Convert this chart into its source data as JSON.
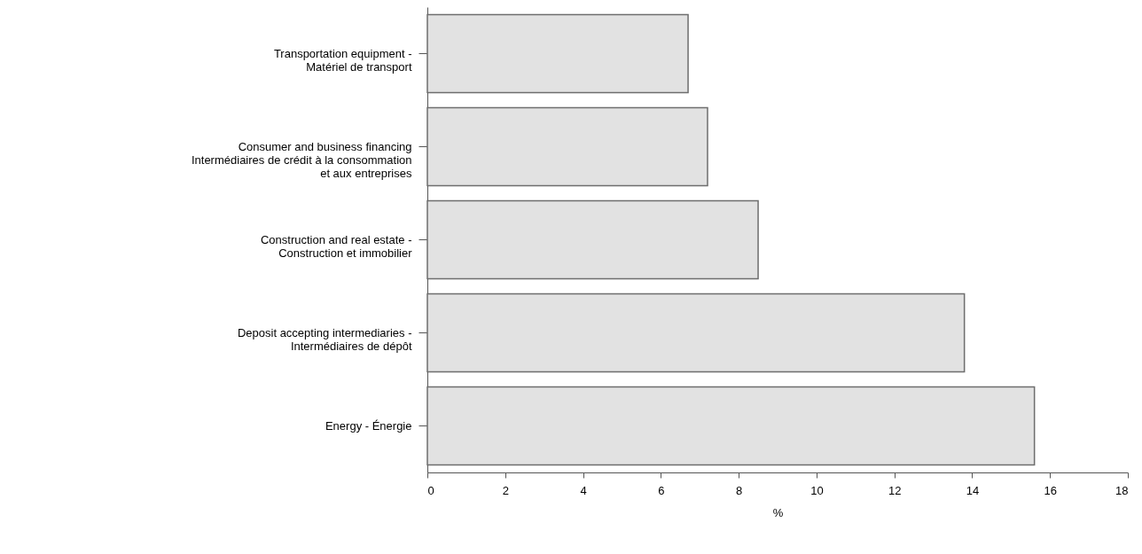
{
  "chart_data": {
    "type": "bar",
    "orientation": "horizontal",
    "xlabel": "%",
    "categories": [
      "Transportation equipment -\nMatériel de transport",
      "Consumer and business financing\nIntermédiaires de crédit à la consommation\net aux entreprises",
      "Construction and real estate -\nConstruction et immobilier",
      "Deposit accepting intermediaries -\nIntermédiaires de dépôt",
      "Energy - Énergie"
    ],
    "values": [
      6.7,
      7.2,
      8.5,
      13.8,
      15.6
    ],
    "color": "#e2e2e2",
    "xlim": [
      0,
      18
    ],
    "xticks": [
      0,
      2,
      4,
      6,
      8,
      10,
      12,
      14,
      16,
      18
    ],
    "grid": false
  }
}
